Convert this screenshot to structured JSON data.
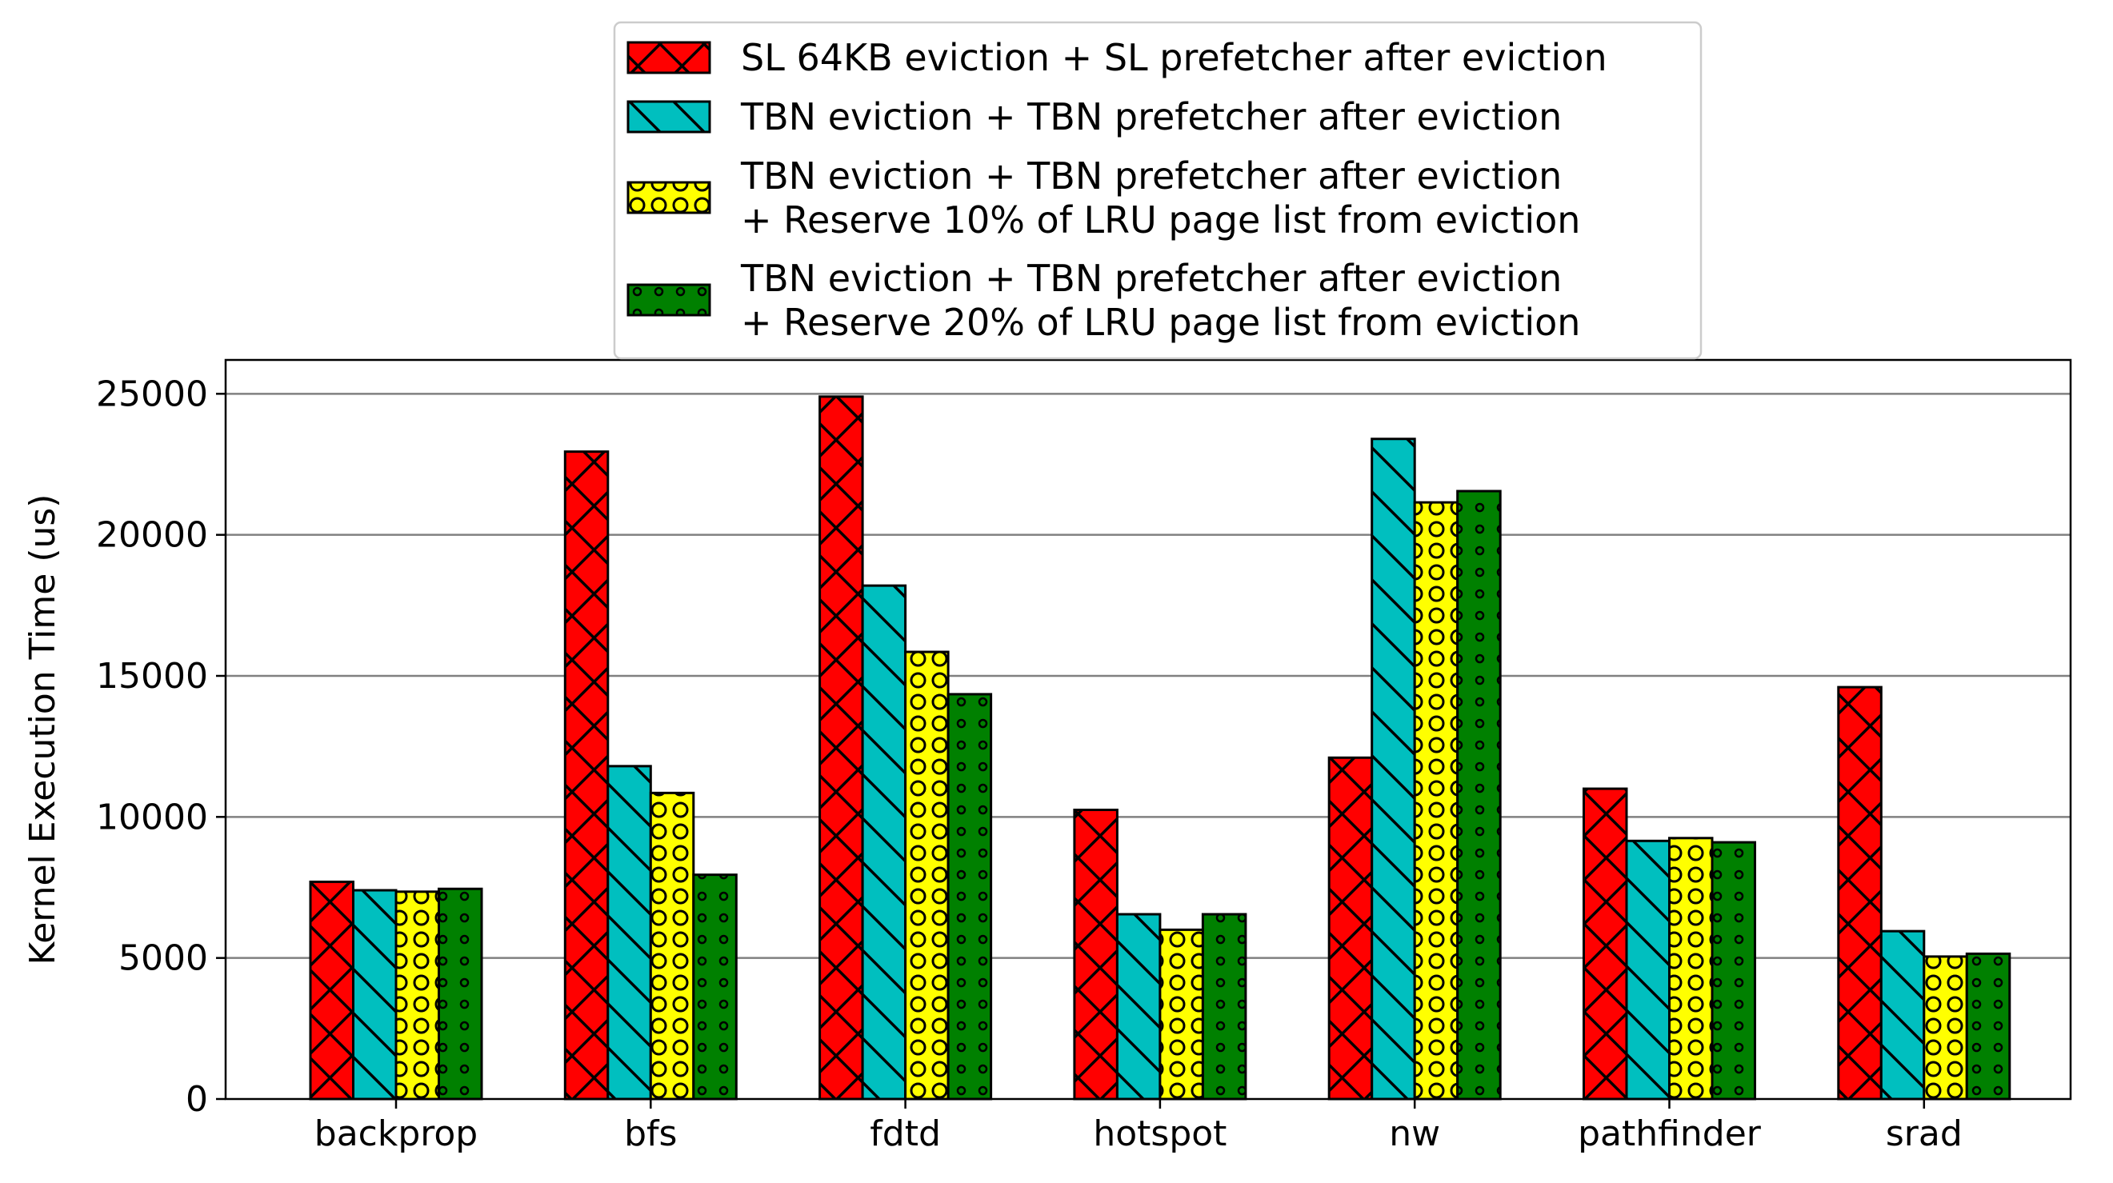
{
  "chart_data": {
    "type": "bar",
    "title": "",
    "xlabel": "",
    "ylabel": "Kernel Execution Time (us)",
    "ylim": [
      0,
      26200
    ],
    "yticks": [
      0,
      5000,
      10000,
      15000,
      20000,
      25000
    ],
    "grid": "horizontal",
    "legend_position": "top-center",
    "categories": [
      "backprop",
      "bfs",
      "fdtd",
      "hotspot",
      "nw",
      "pathfinder",
      "srad"
    ],
    "series": [
      {
        "name": "SL 64KB eviction + SL prefetcher after eviction",
        "color": "#ff0000",
        "pattern": "crosshatch",
        "values": [
          7700,
          22950,
          24900,
          10250,
          12100,
          11000,
          14600
        ]
      },
      {
        "name": "TBN eviction + TBN prefetcher after eviction",
        "color": "#00bfbf",
        "pattern": "backslash",
        "values": [
          7400,
          11800,
          18200,
          6550,
          23400,
          9150,
          5950
        ]
      },
      {
        "name": "TBN eviction + TBN prefetcher after eviction\n + Reserve 10% of LRU page list from eviction",
        "color": "#ffff00",
        "pattern": "rings",
        "values": [
          7350,
          10850,
          15850,
          6000,
          21150,
          9250,
          5050
        ]
      },
      {
        "name": "TBN eviction + TBN prefetcher after eviction\n + Reserve 20% of LRU page list from eviction",
        "color": "#008000",
        "pattern": "dots",
        "values": [
          7450,
          7950,
          14350,
          6550,
          21550,
          9100,
          5150
        ]
      }
    ]
  }
}
